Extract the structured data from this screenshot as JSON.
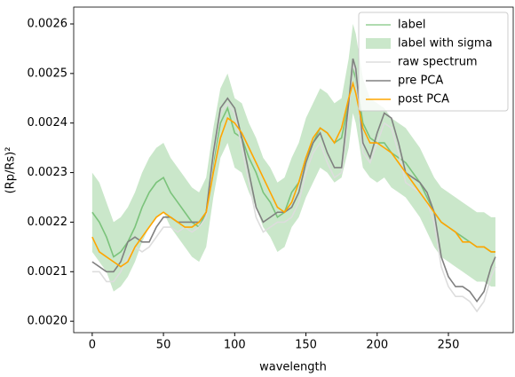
{
  "chart_data": {
    "type": "line",
    "xlabel": "wavelength",
    "ylabel": "(Rp/Rs)²",
    "xlim": [
      -13,
      295.5
    ],
    "ylim": [
      0.001977,
      0.002634
    ],
    "xticks": [
      0,
      50,
      100,
      150,
      200,
      250
    ],
    "yticks": [
      {
        "value": 0.002,
        "label": "0.0020"
      },
      0.0021,
      0.0022,
      0.0023,
      0.0024,
      0.0025,
      0.0026
    ],
    "legend": "upper right",
    "x": [
      0,
      5,
      10,
      15,
      20,
      25,
      30,
      35,
      40,
      45,
      50,
      55,
      60,
      65,
      70,
      75,
      80,
      85,
      90,
      95,
      100,
      105,
      110,
      115,
      120,
      125,
      130,
      135,
      140,
      145,
      150,
      155,
      160,
      165,
      170,
      175,
      180,
      183,
      185,
      190,
      195,
      200,
      205,
      210,
      215,
      220,
      225,
      230,
      235,
      240,
      245,
      250,
      255,
      260,
      265,
      270,
      275,
      280,
      283
    ],
    "series": [
      {
        "name": "label",
        "color": "#2ca02c",
        "opacity": 0.5,
        "values": [
          0.00222,
          0.0022,
          0.00217,
          0.00213,
          0.00214,
          0.00216,
          0.00219,
          0.00223,
          0.00226,
          0.00228,
          0.00229,
          0.00226,
          0.00224,
          0.00222,
          0.0022,
          0.00219,
          0.00222,
          0.00232,
          0.0024,
          0.00243,
          0.00238,
          0.00237,
          0.00233,
          0.0023,
          0.00226,
          0.00224,
          0.00221,
          0.00222,
          0.00226,
          0.00228,
          0.00233,
          0.00236,
          0.00239,
          0.00238,
          0.00236,
          0.00237,
          0.00244,
          0.00251,
          0.00249,
          0.0024,
          0.00237,
          0.00236,
          0.00236,
          0.00234,
          0.00233,
          0.00232,
          0.0023,
          0.00228,
          0.00225,
          0.00222,
          0.0022,
          0.00219,
          0.00218,
          0.00217,
          0.00216,
          0.00215,
          0.00215,
          0.00214,
          0.00214
        ]
      },
      {
        "name": "label with sigma",
        "color": "#2ca02c",
        "opacity": 0.25,
        "upper": [
          0.0023,
          0.00228,
          0.00224,
          0.0022,
          0.00221,
          0.00223,
          0.00226,
          0.0023,
          0.00233,
          0.00235,
          0.00236,
          0.00233,
          0.00231,
          0.00229,
          0.00227,
          0.00226,
          0.00229,
          0.00239,
          0.00247,
          0.0025,
          0.00245,
          0.00244,
          0.0024,
          0.00237,
          0.00233,
          0.00231,
          0.00228,
          0.00229,
          0.00233,
          0.00236,
          0.00241,
          0.00244,
          0.00247,
          0.00246,
          0.00244,
          0.00245,
          0.00253,
          0.0026,
          0.00258,
          0.00249,
          0.00245,
          0.00244,
          0.00243,
          0.00241,
          0.0024,
          0.00239,
          0.00237,
          0.00235,
          0.00232,
          0.00229,
          0.00227,
          0.00226,
          0.00225,
          0.00224,
          0.00223,
          0.00222,
          0.00222,
          0.00221,
          0.00221
        ],
        "lower": [
          0.00214,
          0.00212,
          0.0021,
          0.00206,
          0.00207,
          0.00209,
          0.00212,
          0.00216,
          0.00219,
          0.00221,
          0.00222,
          0.00219,
          0.00217,
          0.00215,
          0.00213,
          0.00212,
          0.00215,
          0.00225,
          0.00233,
          0.00236,
          0.00231,
          0.0023,
          0.00226,
          0.00223,
          0.00219,
          0.00217,
          0.00214,
          0.00215,
          0.00219,
          0.00221,
          0.00225,
          0.00228,
          0.00231,
          0.0023,
          0.00228,
          0.00229,
          0.00235,
          0.00242,
          0.0024,
          0.00231,
          0.00229,
          0.00228,
          0.00229,
          0.00227,
          0.00226,
          0.00225,
          0.00223,
          0.00221,
          0.00218,
          0.00215,
          0.00213,
          0.00212,
          0.00211,
          0.0021,
          0.00209,
          0.00208,
          0.00208,
          0.00207,
          0.00207
        ]
      },
      {
        "name": "raw spectrum",
        "color": "#dddddd",
        "opacity": 1,
        "values": [
          0.0021,
          0.0021,
          0.00208,
          0.00208,
          0.0021,
          0.00213,
          0.00215,
          0.00214,
          0.00215,
          0.00217,
          0.00219,
          0.00219,
          0.00218,
          0.00219,
          0.00218,
          0.00219,
          0.00221,
          0.00233,
          0.00242,
          0.00244,
          0.00242,
          0.00235,
          0.00228,
          0.00221,
          0.00218,
          0.00219,
          0.0022,
          0.0022,
          0.00221,
          0.00224,
          0.0023,
          0.00234,
          0.00236,
          0.00232,
          0.00229,
          0.0023,
          0.00242,
          0.00252,
          0.0025,
          0.00234,
          0.00232,
          0.00236,
          0.0024,
          0.00239,
          0.00234,
          0.00228,
          0.00227,
          0.00226,
          0.00224,
          0.0022,
          0.00211,
          0.00207,
          0.00205,
          0.00205,
          0.00204,
          0.00202,
          0.00204,
          0.00209,
          0.00211
        ]
      },
      {
        "name": "pre PCA",
        "color": "#808080",
        "opacity": 1,
        "values": [
          0.00212,
          0.00211,
          0.0021,
          0.0021,
          0.00212,
          0.00216,
          0.00217,
          0.00216,
          0.00216,
          0.00219,
          0.00221,
          0.00221,
          0.0022,
          0.0022,
          0.0022,
          0.0022,
          0.00222,
          0.00234,
          0.00243,
          0.00245,
          0.00243,
          0.00237,
          0.0023,
          0.00223,
          0.0022,
          0.00221,
          0.00222,
          0.00222,
          0.00223,
          0.00226,
          0.00232,
          0.00236,
          0.00238,
          0.00234,
          0.00231,
          0.00231,
          0.00244,
          0.00253,
          0.00251,
          0.00236,
          0.00233,
          0.00238,
          0.00242,
          0.00241,
          0.00236,
          0.0023,
          0.00229,
          0.00228,
          0.00226,
          0.00222,
          0.00213,
          0.00209,
          0.00207,
          0.00207,
          0.00206,
          0.00204,
          0.00206,
          0.00211,
          0.00213
        ]
      },
      {
        "name": "post PCA",
        "color": "#ffa500",
        "opacity": 1,
        "values": [
          0.00217,
          0.00214,
          0.00213,
          0.00212,
          0.00211,
          0.00212,
          0.00215,
          0.00217,
          0.00219,
          0.00221,
          0.00222,
          0.00221,
          0.0022,
          0.00219,
          0.00219,
          0.0022,
          0.00222,
          0.0023,
          0.00237,
          0.00241,
          0.0024,
          0.00238,
          0.00235,
          0.00232,
          0.00229,
          0.00226,
          0.00223,
          0.00222,
          0.00224,
          0.00228,
          0.00233,
          0.00237,
          0.00239,
          0.00238,
          0.00236,
          0.00239,
          0.00245,
          0.00248,
          0.00246,
          0.00239,
          0.00236,
          0.00236,
          0.00235,
          0.00234,
          0.00232,
          0.0023,
          0.00228,
          0.00226,
          0.00224,
          0.00222,
          0.0022,
          0.00219,
          0.00218,
          0.00216,
          0.00216,
          0.00215,
          0.00215,
          0.00214,
          0.00214
        ]
      }
    ]
  }
}
